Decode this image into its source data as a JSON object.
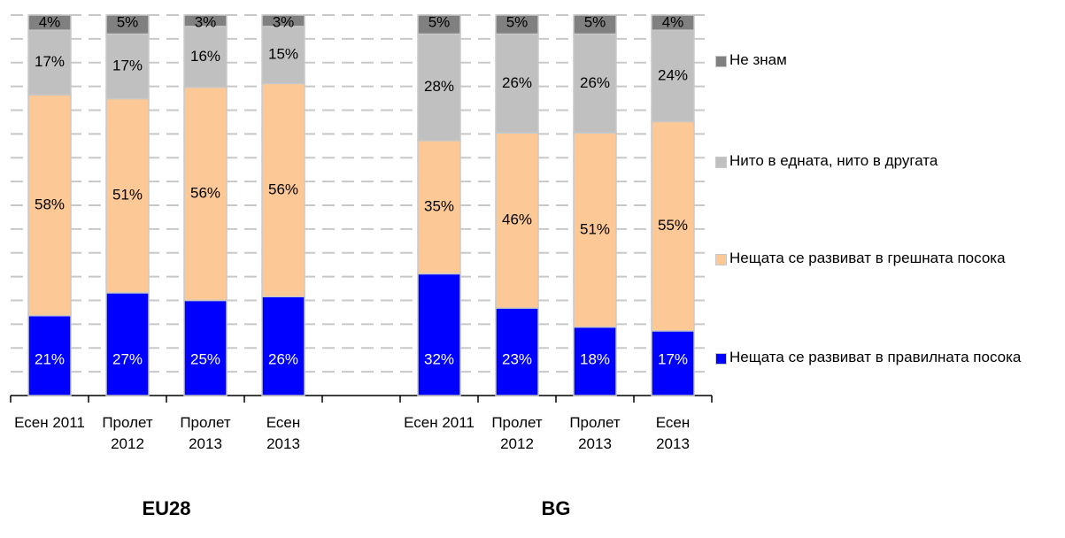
{
  "chart_data": {
    "type": "stacked_bar",
    "categories": [
      "Есен 2011",
      "Пролет 2012",
      "Пролет 2013",
      "Есен 2013",
      null,
      "Есен 2011",
      "Пролет 2012",
      "Пролет 2013",
      "Есен 2013"
    ],
    "group_labels": [
      "EU28",
      "BG"
    ],
    "series": [
      {
        "name": "Нещата се развиват в правилната посока",
        "color": "#0000ff",
        "values": [
          21,
          27,
          25,
          26,
          null,
          32,
          23,
          18,
          17
        ],
        "value_labels": [
          "21%",
          "27%",
          "25%",
          "26%",
          null,
          "32%",
          "23%",
          "18%",
          "17%"
        ]
      },
      {
        "name": "Нещата се развиват в грешната посока",
        "color": "#fcc896",
        "values": [
          58,
          51,
          56,
          56,
          null,
          35,
          46,
          51,
          55
        ],
        "value_labels": [
          "58%",
          "51%",
          "56%",
          "56%",
          null,
          "35%",
          "46%",
          "51%",
          "55%"
        ]
      },
      {
        "name": "Нито в едната, нито в другата",
        "color": "#c0c0c0",
        "values": [
          17,
          17,
          16,
          15,
          null,
          28,
          26,
          26,
          24
        ],
        "value_labels": [
          "17%",
          "17%",
          "16%",
          "15%",
          null,
          "28%",
          "26%",
          "26%",
          "24%"
        ]
      },
      {
        "name": "Не знам",
        "color": "#808080",
        "values": [
          4,
          5,
          3,
          3,
          null,
          5,
          5,
          5,
          4
        ],
        "value_labels": [
          "4%",
          "5%",
          "3%",
          "3%",
          null,
          "5%",
          "5%",
          "5%",
          "4%"
        ]
      }
    ],
    "ylim": [
      0,
      100
    ],
    "yticks": [
      0,
      6.25,
      12.5,
      18.75,
      25,
      31.25,
      37.5,
      43.75,
      50,
      56.25,
      62.5,
      68.75,
      75,
      81.25,
      87.5,
      93.75,
      100
    ],
    "show_ytick_labels": false,
    "grid": "dashed",
    "legend": "right"
  }
}
